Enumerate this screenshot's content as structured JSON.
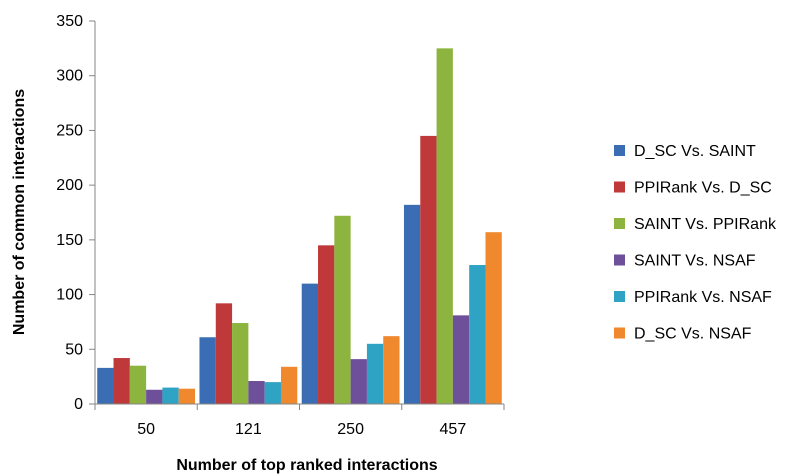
{
  "chart_data": {
    "type": "bar",
    "title": "",
    "xlabel": "Number of top ranked interactions",
    "ylabel": "Number of common interactions",
    "categories": [
      "50",
      "121",
      "250",
      "457"
    ],
    "ylim": [
      0,
      350
    ],
    "yticks": [
      0,
      50,
      100,
      150,
      200,
      250,
      300,
      350
    ],
    "grid": false,
    "legend_position": "right",
    "series": [
      {
        "name": "D_SC Vs. SAINT",
        "color": "#3a6db3",
        "values": [
          33,
          61,
          110,
          182
        ]
      },
      {
        "name": "PPIRank Vs. D_SC",
        "color": "#c0393a",
        "values": [
          42,
          92,
          145,
          245
        ]
      },
      {
        "name": "SAINT Vs. PPIRank",
        "color": "#8db43e",
        "values": [
          35,
          74,
          172,
          325
        ]
      },
      {
        "name": "SAINT Vs. NSAF",
        "color": "#6e4f9a",
        "values": [
          13,
          21,
          41,
          81
        ]
      },
      {
        "name": "PPIRank Vs. NSAF",
        "color": "#2fa3c4",
        "values": [
          15,
          20,
          55,
          127
        ]
      },
      {
        "name": "D_SC Vs. NSAF",
        "color": "#f0892e",
        "values": [
          14,
          34,
          62,
          157
        ]
      }
    ]
  }
}
